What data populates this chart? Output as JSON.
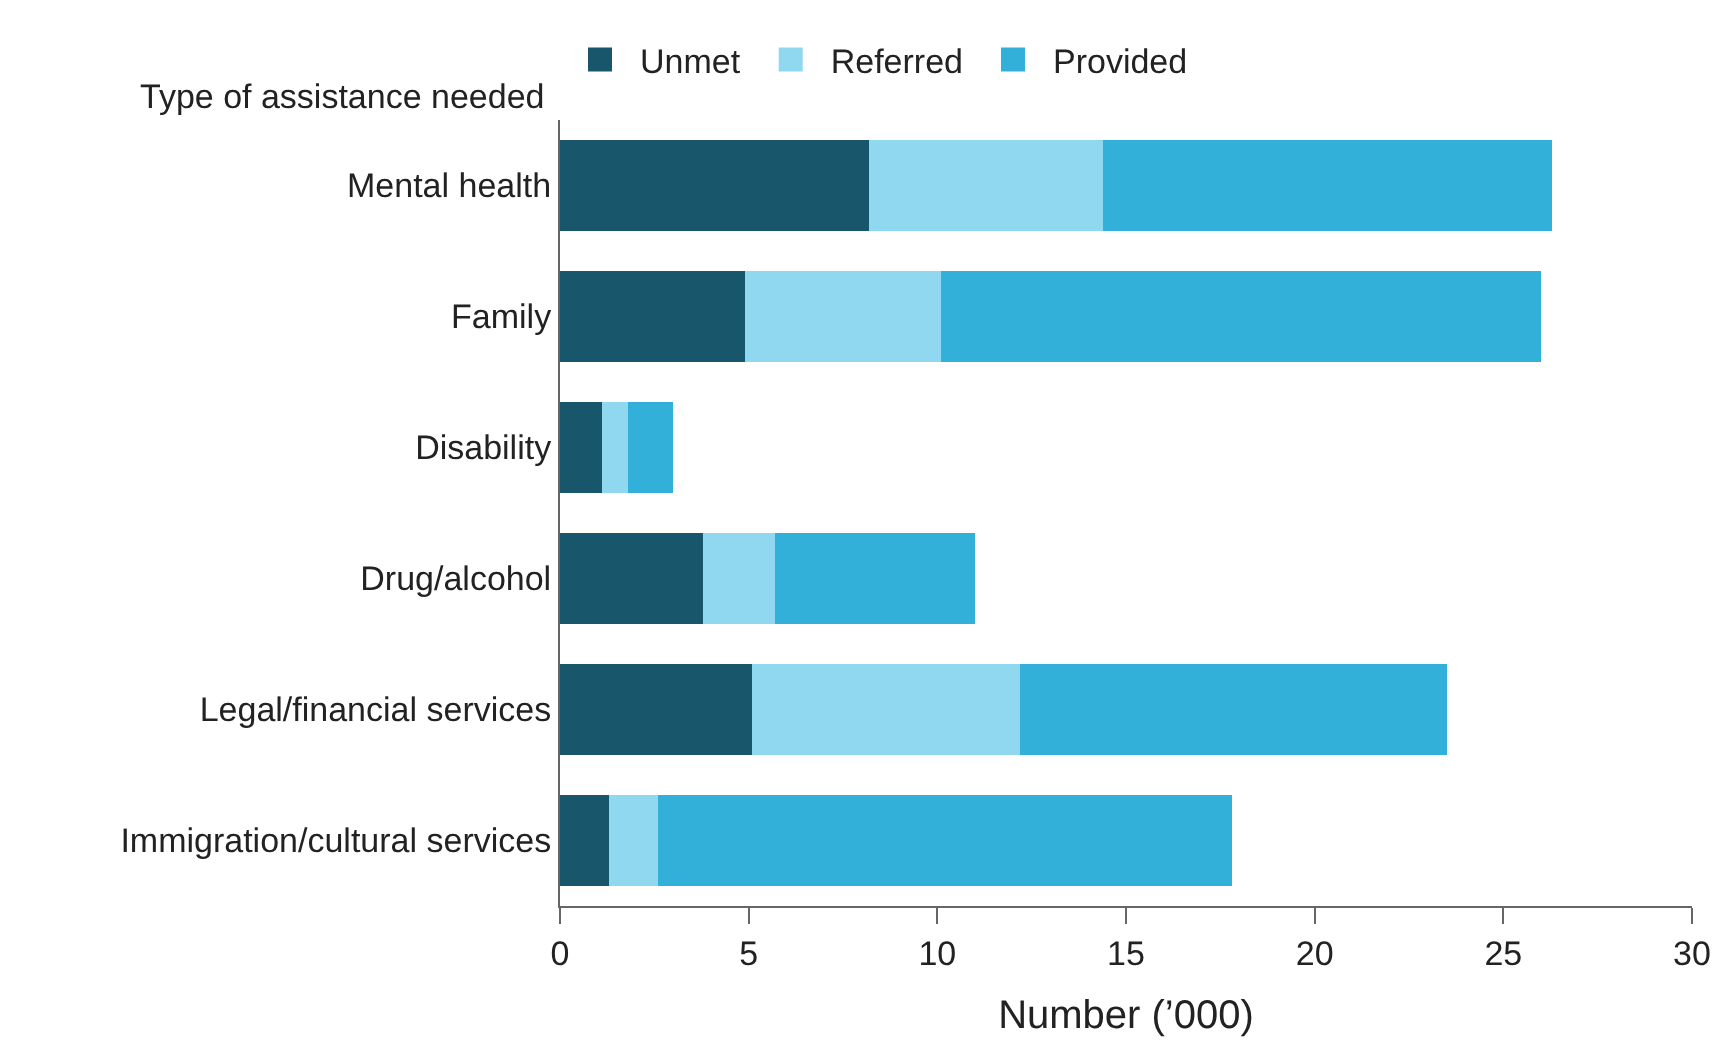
{
  "chart_data": {
    "type": "bar",
    "orientation": "horizontal",
    "stacked": true,
    "ylabel": "Type of assistance needed",
    "xlabel": "Number (’000)",
    "categories": [
      "Mental health",
      "Family",
      "Disability",
      "Drug/alcohol",
      "Legal/financial services",
      "Immigration/cultural services"
    ],
    "series": [
      {
        "name": "Unmet",
        "color": "#17566b",
        "values": [
          8.2,
          4.9,
          1.1,
          3.8,
          5.1,
          1.3
        ]
      },
      {
        "name": "Referred",
        "color": "#8fd8f0",
        "values": [
          6.2,
          5.2,
          0.7,
          1.9,
          7.1,
          1.3
        ]
      },
      {
        "name": "Provided",
        "color": "#33b0da",
        "values": [
          11.9,
          15.9,
          1.2,
          5.3,
          11.3,
          15.2
        ]
      }
    ],
    "xlim": [
      0,
      30
    ],
    "xticks": [
      0,
      5,
      10,
      15,
      20,
      25,
      30
    ],
    "legend": "top"
  }
}
